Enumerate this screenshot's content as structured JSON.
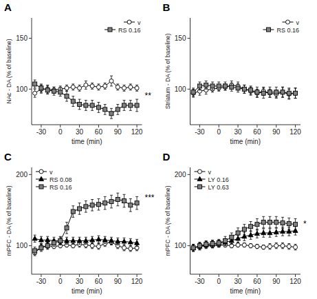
{
  "chart_data": [
    {
      "type": "line",
      "title": "A",
      "x_label": "time (min)",
      "y_label": "NAc - DA (% of baseline)",
      "x": [
        -40,
        -30,
        -20,
        -10,
        0,
        10,
        20,
        30,
        40,
        50,
        60,
        70,
        80,
        90,
        100,
        110,
        120
      ],
      "series": [
        {
          "name": "v",
          "color": "#ffffff",
          "marker": "circle",
          "values": [
            96,
            100,
            100,
            99,
            100,
            101,
            102,
            101,
            104,
            103,
            102,
            103,
            108,
            102,
            101,
            102,
            101
          ],
          "errors": [
            4,
            4,
            4,
            3,
            3,
            3,
            3,
            3,
            4,
            3,
            3,
            3,
            5,
            3,
            3,
            3,
            3
          ]
        },
        {
          "name": "RS 0.16",
          "color": "#808080",
          "marker": "square",
          "values": [
            105,
            101,
            99,
            98,
            97,
            93,
            88,
            85,
            84,
            84,
            82,
            80,
            76,
            80,
            84,
            84,
            84
          ],
          "errors": [
            4,
            4,
            4,
            4,
            4,
            5,
            5,
            5,
            5,
            5,
            5,
            5,
            5,
            5,
            5,
            5,
            6
          ]
        }
      ],
      "xlim": [
        -45,
        128
      ],
      "ylim": [
        65,
        170
      ],
      "xticks": [
        -30,
        0,
        30,
        60,
        90,
        120
      ],
      "yticks": [
        100,
        150
      ],
      "legend": "upper right",
      "grid": false,
      "annotations": [
        {
          "text": "**"
        }
      ]
    },
    {
      "type": "line",
      "title": "B",
      "x_label": "time (min)",
      "y_label": "Striatum - DA (% of baseline)",
      "x": [
        -40,
        -30,
        -20,
        -10,
        0,
        10,
        20,
        30,
        40,
        50,
        60,
        70,
        80,
        90,
        100,
        110,
        120
      ],
      "series": [
        {
          "name": "v",
          "color": "#ffffff",
          "marker": "circle",
          "values": [
            96,
            98,
            99,
            100,
            101,
            102,
            104,
            103,
            100,
            98,
            96,
            98,
            96,
            95,
            97,
            95,
            96
          ],
          "errors": [
            4,
            4,
            4,
            3,
            3,
            3,
            4,
            4,
            4,
            4,
            4,
            4,
            4,
            4,
            5,
            5,
            5
          ]
        },
        {
          "name": "RS 0.16",
          "color": "#808080",
          "marker": "square",
          "values": [
            97,
            103,
            104,
            103,
            103,
            103,
            102,
            101,
            100,
            99,
            97,
            96,
            97,
            97,
            97,
            96,
            96
          ],
          "errors": [
            4,
            4,
            4,
            4,
            4,
            4,
            4,
            4,
            4,
            4,
            5,
            5,
            5,
            5,
            5,
            5,
            5
          ]
        }
      ],
      "xlim": [
        -45,
        128
      ],
      "ylim": [
        65,
        170
      ],
      "xticks": [
        -30,
        0,
        30,
        60,
        90,
        120
      ],
      "yticks": [
        100,
        150
      ],
      "legend": "upper right",
      "grid": false
    },
    {
      "type": "line",
      "title": "C",
      "x_label": "time (min)",
      "y_label": "mPFC - DA (% of baseline)",
      "x": [
        -40,
        -30,
        -20,
        -10,
        0,
        10,
        20,
        30,
        40,
        50,
        60,
        70,
        80,
        90,
        100,
        110,
        120
      ],
      "series": [
        {
          "name": "v",
          "color": "#ffffff",
          "marker": "circle",
          "values": [
            90,
            98,
            100,
            99,
            100,
            101,
            100,
            102,
            101,
            100,
            99,
            103,
            105,
            100,
            97,
            96,
            97
          ],
          "errors": [
            4,
            4,
            4,
            3,
            3,
            3,
            3,
            4,
            4,
            4,
            4,
            4,
            4,
            4,
            4,
            4,
            4
          ]
        },
        {
          "name": "RS 0.08",
          "color": "#000000",
          "marker": "triangle",
          "values": [
            110,
            108,
            108,
            107,
            107,
            107,
            107,
            107,
            107,
            108,
            109,
            108,
            107,
            106,
            106,
            105,
            104
          ],
          "errors": [
            5,
            5,
            5,
            5,
            5,
            5,
            5,
            5,
            5,
            5,
            5,
            5,
            5,
            5,
            5,
            5,
            5
          ]
        },
        {
          "name": "RS 0.16",
          "color": "#808080",
          "marker": "square",
          "values": [
            93,
            97,
            100,
            104,
            107,
            125,
            148,
            152,
            155,
            157,
            158,
            160,
            162,
            165,
            163,
            157,
            160
          ],
          "errors": [
            5,
            5,
            5,
            5,
            6,
            8,
            8,
            8,
            8,
            8,
            8,
            9,
            9,
            9,
            9,
            9,
            9
          ]
        }
      ],
      "xlim": [
        -45,
        128
      ],
      "ylim": [
        60,
        210
      ],
      "xticks": [
        -30,
        0,
        30,
        60,
        90,
        120
      ],
      "yticks": [
        100,
        200
      ],
      "legend": "upper left",
      "grid": false,
      "annotations": [
        {
          "text": "***"
        }
      ]
    },
    {
      "type": "line",
      "title": "D",
      "x_label": "time (min)",
      "y_label": "mPFC - DA (% of baseline)",
      "x": [
        -40,
        -30,
        -20,
        -10,
        0,
        10,
        20,
        30,
        40,
        50,
        60,
        70,
        80,
        90,
        100,
        110,
        120
      ],
      "series": [
        {
          "name": "v",
          "color": "#ffffff",
          "marker": "circle",
          "values": [
            97,
            99,
            100,
            100,
            101,
            101,
            100,
            101,
            101,
            100,
            99,
            98,
            99,
            100,
            100,
            99,
            98
          ],
          "errors": [
            4,
            4,
            3,
            3,
            3,
            3,
            3,
            3,
            3,
            3,
            3,
            3,
            4,
            4,
            4,
            4,
            4
          ]
        },
        {
          "name": "LY 0.16",
          "color": "#000000",
          "marker": "triangle",
          "values": [
            97,
            99,
            101,
            102,
            103,
            105,
            107,
            110,
            113,
            115,
            117,
            118,
            118,
            119,
            120,
            120,
            121
          ],
          "errors": [
            5,
            5,
            5,
            5,
            5,
            5,
            5,
            5,
            6,
            6,
            6,
            6,
            6,
            6,
            6,
            6,
            6
          ]
        },
        {
          "name": "LY 0.63",
          "color": "#808080",
          "marker": "square",
          "values": [
            97,
            100,
            102,
            103,
            104,
            107,
            112,
            118,
            123,
            127,
            130,
            133,
            133,
            133,
            132,
            131,
            130
          ],
          "errors": [
            5,
            5,
            5,
            5,
            5,
            6,
            6,
            7,
            7,
            7,
            8,
            8,
            8,
            8,
            8,
            8,
            8
          ]
        }
      ],
      "xlim": [
        -45,
        128
      ],
      "ylim": [
        60,
        210
      ],
      "xticks": [
        -30,
        0,
        30,
        60,
        90,
        120
      ],
      "yticks": [
        100,
        200
      ],
      "legend": "upper left",
      "grid": false,
      "annotations": [
        {
          "text": "*"
        }
      ]
    }
  ]
}
